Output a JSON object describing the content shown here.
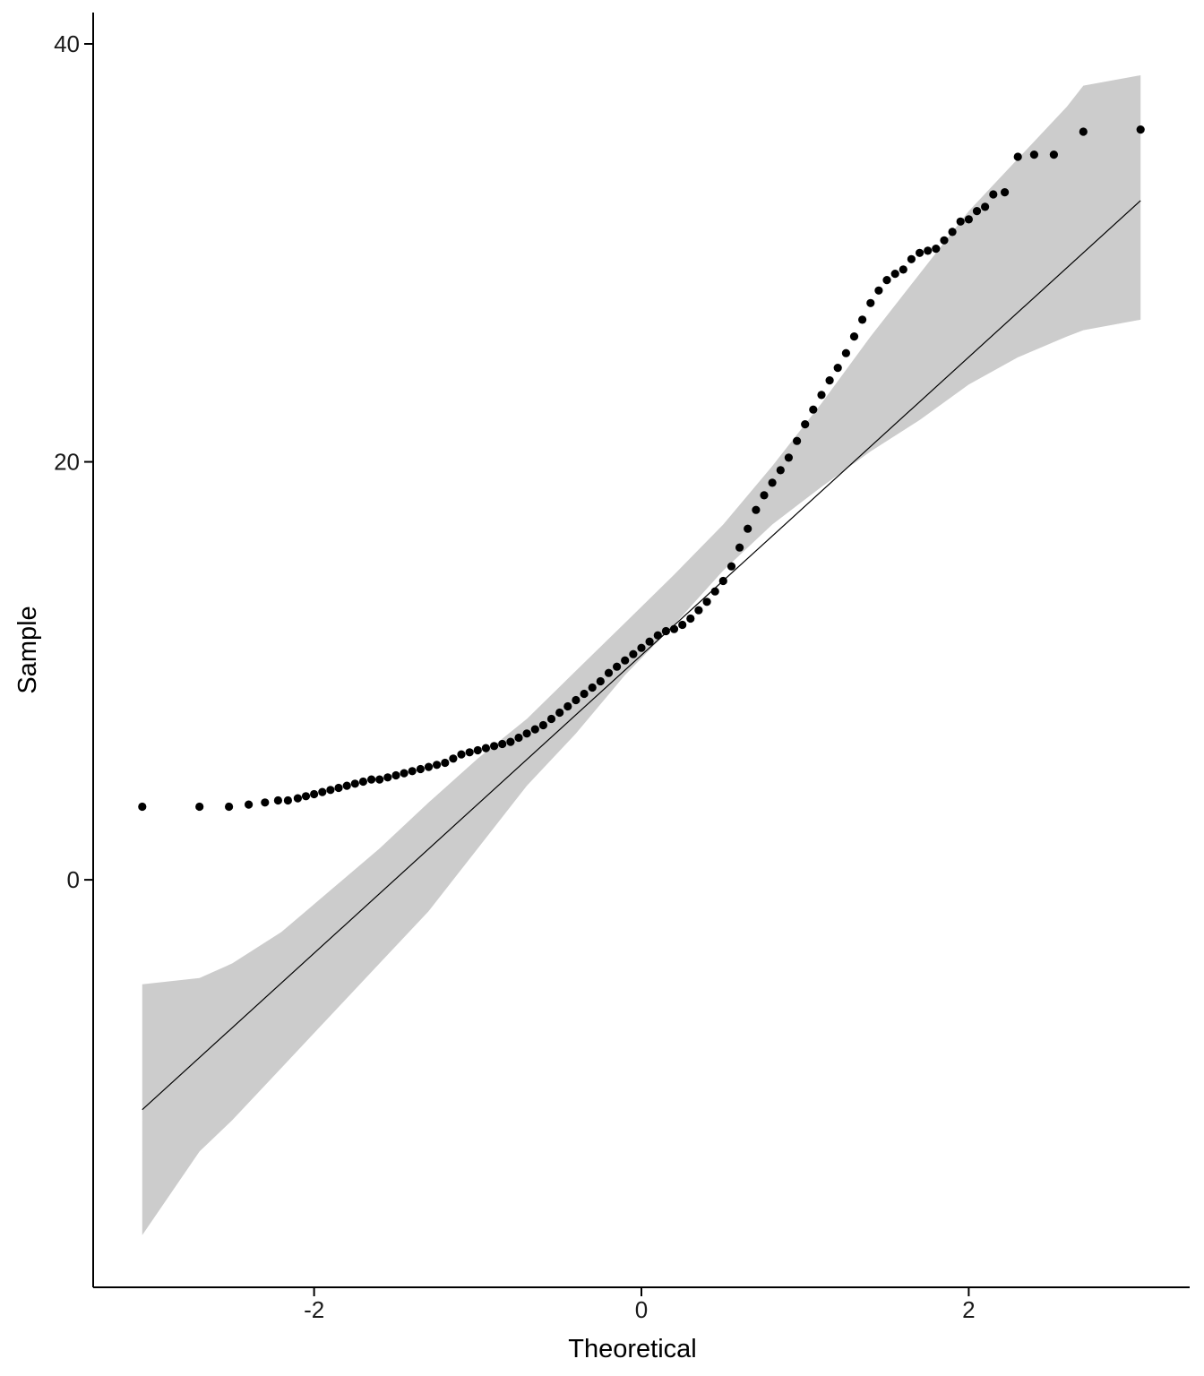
{
  "chart_data": {
    "type": "scatter",
    "title": "",
    "xlabel": "Theoretical",
    "ylabel": "Sample",
    "xlim": [
      -3.35,
      3.35
    ],
    "ylim": [
      -19.5,
      41.5
    ],
    "x_ticks": [
      -2,
      0,
      2
    ],
    "x_tick_labels": [
      "-2",
      "0",
      "2"
    ],
    "y_ticks": [
      0,
      20,
      40
    ],
    "y_tick_labels": [
      "0",
      "20",
      "40"
    ],
    "grid": false,
    "legend": "none",
    "point_color": "#000000",
    "line_color": "#000000",
    "band_color": "#cccccc",
    "reference_line": {
      "x": [
        -3.05,
        3.05
      ],
      "y": [
        -11.0,
        32.5
      ]
    },
    "confidence_band": {
      "x": [
        -3.05,
        -2.7,
        -2.5,
        -2.2,
        -1.9,
        -1.6,
        -1.3,
        -1.0,
        -0.7,
        -0.4,
        -0.1,
        0.2,
        0.5,
        0.8,
        1.1,
        1.4,
        1.7,
        2.0,
        2.3,
        2.6,
        2.7,
        3.05
      ],
      "lower": [
        -17.0,
        -13.0,
        -11.5,
        -9.0,
        -6.5,
        -4.0,
        -1.5,
        1.5,
        4.5,
        7.0,
        9.8,
        12.2,
        14.8,
        17.0,
        18.8,
        20.5,
        22.0,
        23.7,
        25.0,
        26.0,
        26.3,
        26.8
      ],
      "upper": [
        -5.0,
        -4.7,
        -4.0,
        -2.5,
        -0.5,
        1.5,
        3.7,
        5.8,
        7.7,
        10.0,
        12.3,
        14.6,
        17.0,
        19.8,
        22.8,
        26.0,
        29.0,
        32.0,
        34.5,
        37.0,
        38.0,
        38.5
      ]
    },
    "sample_points": {
      "x": [
        -3.05,
        -2.7,
        -2.52,
        -2.4,
        -2.3,
        -2.22,
        -2.16,
        -2.1,
        -2.05,
        -2.0,
        -1.95,
        -1.9,
        -1.85,
        -1.8,
        -1.75,
        -1.7,
        -1.65,
        -1.6,
        -1.55,
        -1.5,
        -1.45,
        -1.4,
        -1.35,
        -1.3,
        -1.25,
        -1.2,
        -1.15,
        -1.1,
        -1.05,
        -1.0,
        -0.95,
        -0.9,
        -0.85,
        -0.8,
        -0.75,
        -0.7,
        -0.65,
        -0.6,
        -0.55,
        -0.5,
        -0.45,
        -0.4,
        -0.35,
        -0.3,
        -0.25,
        -0.2,
        -0.15,
        -0.1,
        -0.05,
        0.0,
        0.05,
        0.1,
        0.15,
        0.2,
        0.25,
        0.3,
        0.35,
        0.4,
        0.45,
        0.5,
        0.55,
        0.6,
        0.65,
        0.7,
        0.75,
        0.8,
        0.85,
        0.9,
        0.95,
        1.0,
        1.05,
        1.1,
        1.15,
        1.2,
        1.25,
        1.3,
        1.35,
        1.4,
        1.45,
        1.5,
        1.55,
        1.6,
        1.65,
        1.7,
        1.75,
        1.8,
        1.85,
        1.9,
        1.95,
        2.0,
        2.05,
        2.1,
        2.15,
        2.22,
        2.3,
        2.4,
        2.52,
        2.7,
        3.05
      ],
      "y": [
        3.5,
        3.5,
        3.5,
        3.6,
        3.7,
        3.8,
        3.8,
        3.9,
        4.0,
        4.1,
        4.2,
        4.3,
        4.4,
        4.5,
        4.6,
        4.7,
        4.8,
        4.8,
        4.9,
        5.0,
        5.1,
        5.2,
        5.3,
        5.4,
        5.5,
        5.6,
        5.8,
        6.0,
        6.1,
        6.2,
        6.3,
        6.4,
        6.5,
        6.6,
        6.8,
        7.0,
        7.2,
        7.4,
        7.7,
        8.0,
        8.3,
        8.6,
        8.9,
        9.2,
        9.5,
        9.9,
        10.2,
        10.5,
        10.8,
        11.1,
        11.4,
        11.7,
        11.9,
        12.0,
        12.2,
        12.5,
        12.9,
        13.3,
        13.8,
        14.3,
        15.0,
        15.9,
        16.8,
        17.7,
        18.4,
        19.0,
        19.6,
        20.2,
        21.0,
        21.8,
        22.5,
        23.2,
        23.9,
        24.5,
        25.2,
        26.0,
        26.8,
        27.6,
        28.2,
        28.7,
        29.0,
        29.2,
        29.7,
        30.0,
        30.1,
        30.2,
        30.6,
        31.0,
        31.5,
        31.6,
        32.0,
        32.2,
        32.8,
        32.9,
        34.6,
        34.7,
        34.7,
        35.8,
        35.9
      ]
    }
  }
}
